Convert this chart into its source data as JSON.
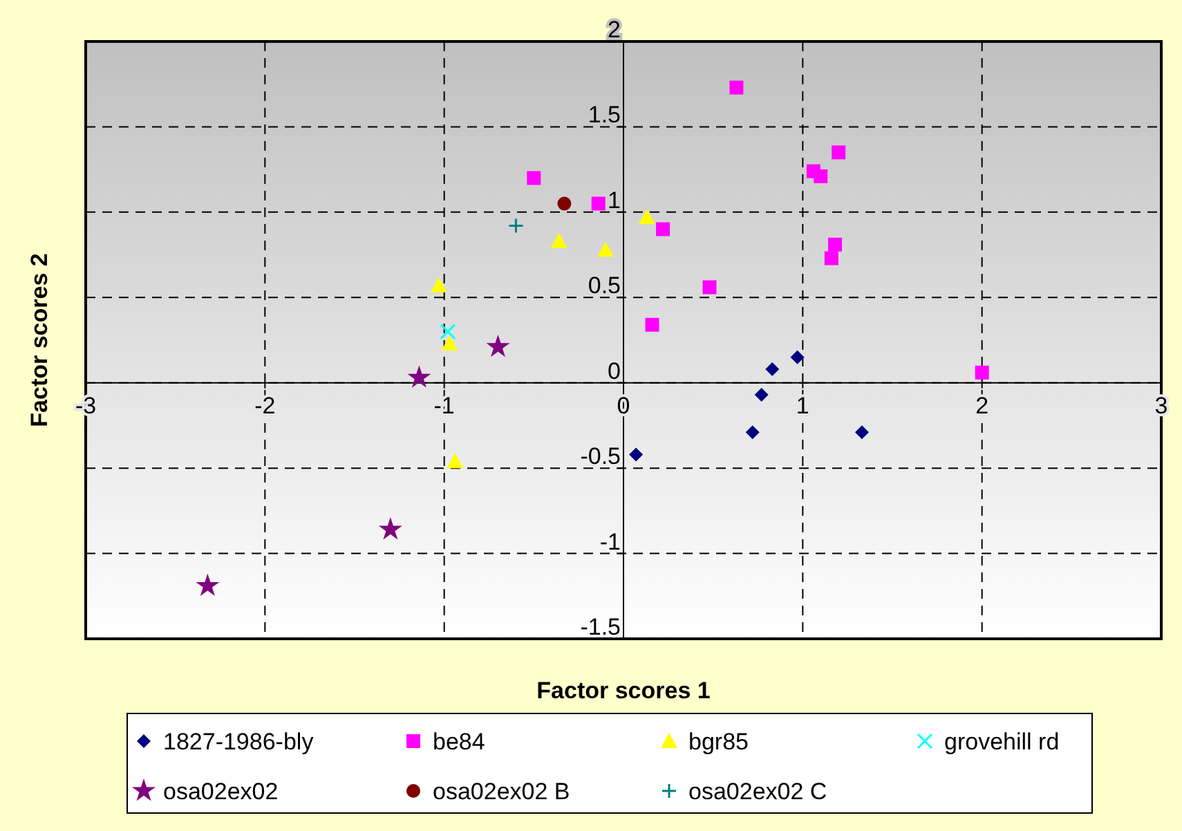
{
  "chart_data": {
    "type": "scatter",
    "xlabel": "Factor scores 1",
    "ylabel": "Factor scores 2",
    "xlim": [
      -3,
      3
    ],
    "ylim": [
      -1.5,
      2
    ],
    "xticks": [
      -3,
      -2,
      -1,
      0,
      1,
      2,
      3
    ],
    "yticks": [
      -1.5,
      -1,
      -0.5,
      0,
      0.5,
      1,
      1.5,
      2
    ],
    "grid": true,
    "legend": "bottom",
    "series": [
      {
        "name": "1827-1986-bly",
        "color": "#000080",
        "marker": "diamond",
        "x": [
          0.07,
          0.72,
          0.77,
          0.83,
          0.97,
          1.33
        ],
        "values": [
          -0.42,
          -0.29,
          -0.07,
          0.08,
          0.15,
          -0.29
        ]
      },
      {
        "name": "be84",
        "color": "#ff00ff",
        "marker": "square",
        "x": [
          -0.5,
          -0.14,
          0.63,
          1.2,
          1.06,
          1.1,
          1.18,
          1.16,
          0.22,
          0.48,
          0.16,
          2.0
        ],
        "values": [
          1.2,
          1.05,
          1.73,
          1.35,
          1.24,
          1.21,
          0.81,
          0.73,
          0.9,
          0.56,
          0.34,
          0.06
        ]
      },
      {
        "name": "bgr85",
        "color": "#ffff00",
        "marker": "triangle",
        "x": [
          -0.36,
          -0.1,
          -1.03,
          -0.97,
          -0.94,
          0.13
        ],
        "values": [
          0.83,
          0.78,
          0.57,
          0.23,
          -0.46,
          0.97
        ]
      },
      {
        "name": "grovehill rd",
        "color": "#00ffff",
        "marker": "cross",
        "x": [
          -0.98
        ],
        "values": [
          0.3
        ]
      },
      {
        "name": "osa02ex02",
        "color": "#800080",
        "marker": "star",
        "x": [
          -0.7,
          -1.14,
          -1.3,
          -2.32
        ],
        "values": [
          0.21,
          0.03,
          -0.86,
          -1.19
        ]
      },
      {
        "name": "osa02ex02 B",
        "color": "#800000",
        "marker": "circle",
        "x": [
          -0.33
        ],
        "values": [
          1.05
        ]
      },
      {
        "name": "osa02ex02 C",
        "color": "#008080",
        "marker": "plus",
        "x": [
          -0.6
        ],
        "values": [
          0.92
        ]
      }
    ]
  }
}
